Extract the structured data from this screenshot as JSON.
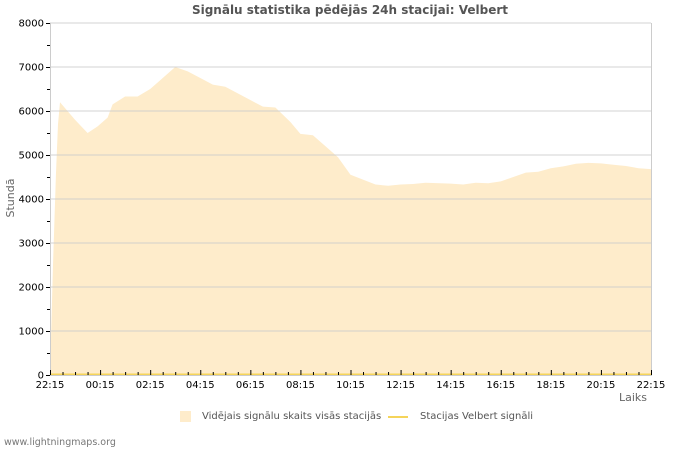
{
  "page": {
    "title": "Signālu statistika pēdējās 24h stacijai: Velbert",
    "footer": "www.lightningmaps.org"
  },
  "axes": {
    "y_title": "Stundā",
    "x_title": "Laiks",
    "y_ticks": [
      "0",
      "1000",
      "2000",
      "3000",
      "4000",
      "5000",
      "6000",
      "7000",
      "8000"
    ],
    "x_ticks": [
      "22:15",
      "00:15",
      "02:15",
      "04:15",
      "06:15",
      "08:15",
      "10:15",
      "12:15",
      "14:15",
      "16:15",
      "18:15",
      "20:15",
      "22:15"
    ]
  },
  "legend": {
    "area_label": "Vidējais signālu skaits visās stacijās",
    "line_label": "Stacijas Velbert signāli"
  },
  "colors": {
    "area_fill": "#feeccb",
    "line": "#f5d45a",
    "grid": "#cccccc",
    "grid_minor": "#d8c8a8",
    "title": "#555555"
  },
  "chart_data": {
    "type": "area",
    "title": "Signālu statistika pēdējās 24h stacijai: Velbert",
    "xlabel": "Laiks",
    "ylabel": "Stundā",
    "ylim": [
      0,
      8000
    ],
    "grid": true,
    "legend_position": "bottom",
    "categories": [
      "22:15",
      "00:15",
      "02:15",
      "04:15",
      "06:15",
      "08:15",
      "10:15",
      "12:15",
      "14:15",
      "16:15",
      "18:15",
      "20:15",
      "22:15"
    ],
    "series": [
      {
        "name": "Vidējais signālu skaits visās stacijās",
        "type": "area",
        "x_hours_since_start": [
          0,
          0.12,
          0.24,
          0.32,
          0.4,
          1.0,
          1.5,
          1.9,
          2.3,
          2.5,
          3.0,
          3.5,
          4.0,
          4.4,
          4.7,
          5.0,
          5.5,
          6.0,
          6.5,
          7.0,
          7.5,
          8.0,
          8.5,
          9.0,
          9.6,
          10.0,
          10.5,
          11.0,
          11.5,
          12.0,
          13.0,
          13.5,
          14.0,
          14.5,
          15.0,
          16.0,
          16.5,
          17.0,
          17.5,
          18.0,
          18.5,
          19.0,
          19.5,
          20.0,
          20.5,
          21.0,
          21.5,
          22.0,
          22.5,
          23.0,
          23.5,
          24.0
        ],
        "values": [
          0,
          2500,
          4600,
          5700,
          6200,
          5800,
          5500,
          5650,
          5850,
          6150,
          6330,
          6330,
          6500,
          6700,
          6850,
          7000,
          6900,
          6750,
          6600,
          6550,
          6400,
          6250,
          6100,
          6080,
          5750,
          5480,
          5450,
          5200,
          4950,
          4550,
          4330,
          4300,
          4330,
          4340,
          4370,
          4350,
          4330,
          4370,
          4360,
          4400,
          4500,
          4600,
          4620,
          4700,
          4740,
          4800,
          4820,
          4810,
          4780,
          4750,
          4700,
          4680
        ]
      },
      {
        "name": "Stacijas Velbert signāli",
        "type": "line",
        "x_hours_since_start": [
          0,
          24
        ],
        "values": [
          0,
          0
        ]
      }
    ]
  }
}
